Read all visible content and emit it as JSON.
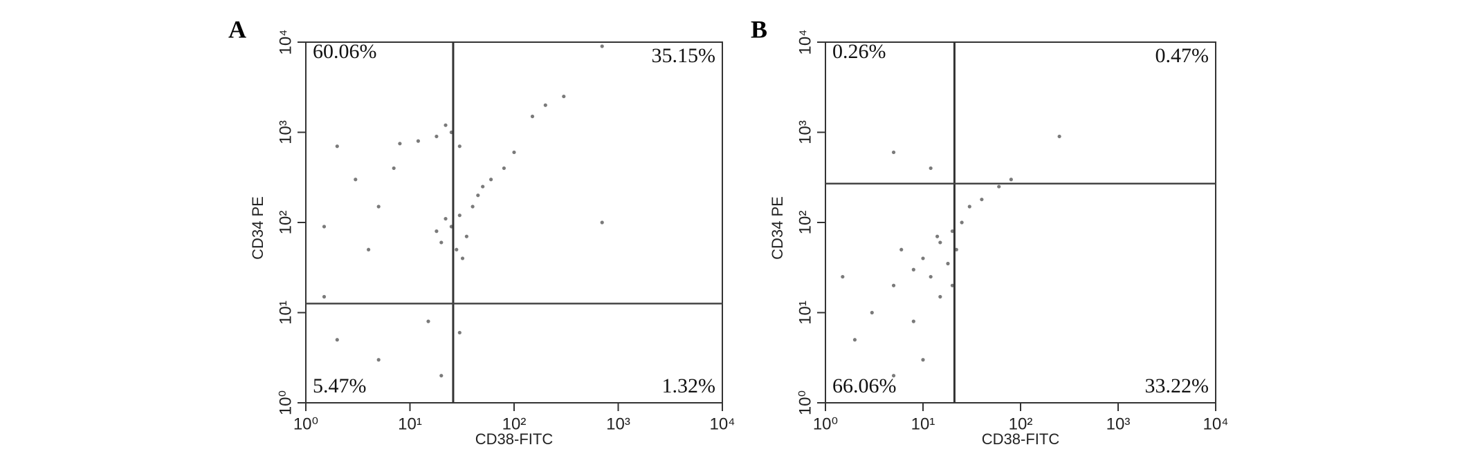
{
  "chart_data": [
    {
      "type": "scatter",
      "panel": "A",
      "xlabel": "CD38-FITC",
      "ylabel": "CD34 PE",
      "log_x": true,
      "log_y": true,
      "color": "#7a7a7a",
      "xlim": [
        1,
        10000
      ],
      "ylim": [
        1,
        10000
      ],
      "xticks": [
        {
          "value": 1,
          "label": "10⁰"
        },
        {
          "value": 10,
          "label": "10¹"
        },
        {
          "value": 100,
          "label": "10²"
        },
        {
          "value": 1000,
          "label": "10³"
        },
        {
          "value": 10000,
          "label": "10⁴"
        }
      ],
      "yticks": [
        {
          "value": 1,
          "label": "10⁰"
        },
        {
          "value": 10,
          "label": "10¹"
        },
        {
          "value": 100,
          "label": "10²"
        },
        {
          "value": 1000,
          "label": "10³"
        },
        {
          "value": 10000,
          "label": "10⁴"
        }
      ],
      "x_gate": 26,
      "y_gate": 12.6,
      "quadrants": {
        "values": [
          60.06,
          35.15,
          5.47,
          1.32
        ],
        "value_labels": [
          "60.06%",
          "35.15%",
          "5.47%",
          "1.32%"
        ]
      },
      "x": [
        20,
        25,
        30,
        35,
        40,
        28,
        22,
        45,
        50,
        18,
        32,
        60,
        80,
        12,
        18,
        25,
        30,
        8,
        22,
        2,
        3,
        5,
        1.5,
        4,
        7,
        2,
        5,
        15,
        20,
        30,
        1.5,
        200,
        300,
        700,
        150,
        100,
        700
      ],
      "y": [
        60,
        90,
        120,
        70,
        150,
        50,
        110,
        200,
        250,
        80,
        40,
        300,
        400,
        800,
        900,
        1000,
        700,
        750,
        1200,
        700,
        300,
        150,
        90,
        50,
        400,
        5,
        3,
        8,
        2,
        6,
        15,
        2000,
        2500,
        9000,
        1500,
        600,
        100
      ]
    },
    {
      "type": "scatter",
      "panel": "B",
      "xlabel": "CD38-FITC",
      "ylabel": "CD34 PE",
      "log_x": true,
      "log_y": true,
      "color": "#7a7a7a",
      "xlim": [
        1,
        10000
      ],
      "ylim": [
        1,
        10000
      ],
      "xticks": [
        {
          "value": 1,
          "label": "10⁰"
        },
        {
          "value": 10,
          "label": "10¹"
        },
        {
          "value": 100,
          "label": "10²"
        },
        {
          "value": 1000,
          "label": "10³"
        },
        {
          "value": 10000,
          "label": "10⁴"
        }
      ],
      "yticks": [
        {
          "value": 1,
          "label": "10⁰"
        },
        {
          "value": 10,
          "label": "10¹"
        },
        {
          "value": 100,
          "label": "10²"
        },
        {
          "value": 1000,
          "label": "10³"
        },
        {
          "value": 10000,
          "label": "10⁴"
        }
      ],
      "x_gate": 21,
      "y_gate": 270,
      "quadrants": {
        "values": [
          0.26,
          0.47,
          66.06,
          33.22
        ],
        "value_labels": [
          "0.26%",
          "0.47%",
          "66.06%",
          "33.22%"
        ]
      },
      "x": [
        10,
        15,
        20,
        8,
        12,
        25,
        30,
        40,
        60,
        5,
        6,
        18,
        22,
        14,
        3,
        2,
        8,
        10,
        15,
        20,
        5,
        1.5,
        250,
        5,
        80,
        12
      ],
      "y": [
        40,
        60,
        80,
        30,
        25,
        100,
        150,
        180,
        250,
        20,
        50,
        35,
        50,
        70,
        10,
        5,
        8,
        3,
        15,
        20,
        2,
        25,
        900,
        600,
        300,
        400
      ]
    }
  ]
}
